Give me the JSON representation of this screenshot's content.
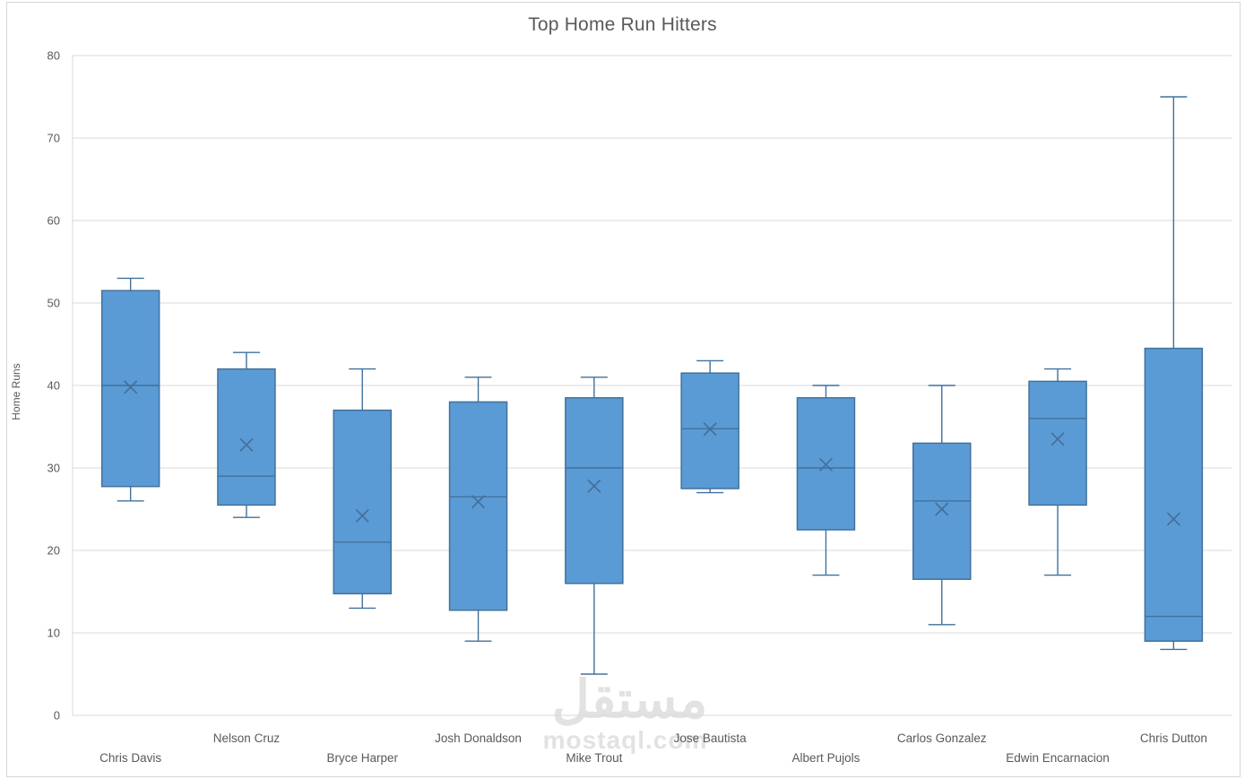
{
  "window": {
    "title": "Top Home Run Hitters"
  },
  "watermark": {
    "arabic": "مستقل",
    "latin": "mostaql.com"
  },
  "chart_data": {
    "type": "boxplot",
    "title": "Top Home Run Hitters",
    "xlabel": "",
    "ylabel": "Home Runs",
    "ylim": [
      0,
      80
    ],
    "yticks": [
      0,
      10,
      20,
      30,
      40,
      50,
      60,
      70,
      80
    ],
    "grid": true,
    "legend": "none",
    "categories": [
      "Chris Davis",
      "Nelson Cruz",
      "Bryce Harper",
      "Josh Donaldson",
      "Mike Trout",
      "Jose Bautista",
      "Albert Pujols",
      "Carlos Gonzalez",
      "Edwin Encarnacion",
      "Chris Dutton"
    ],
    "series": [
      {
        "name": "Chris Davis",
        "min": 26,
        "q1": 27.75,
        "median": 40,
        "q3": 51.5,
        "max": 53,
        "mean": 39.8
      },
      {
        "name": "Nelson Cruz",
        "min": 24,
        "q1": 25.5,
        "median": 29,
        "q3": 42,
        "max": 44,
        "mean": 32.8
      },
      {
        "name": "Bryce Harper",
        "min": 13,
        "q1": 14.75,
        "median": 21,
        "q3": 37,
        "max": 42,
        "mean": 24.2
      },
      {
        "name": "Josh Donaldson",
        "min": 9,
        "q1": 12.75,
        "median": 26.5,
        "q3": 38,
        "max": 41,
        "mean": 25.9
      },
      {
        "name": "Mike Trout",
        "min": 5,
        "q1": 16,
        "median": 30,
        "q3": 38.5,
        "max": 41,
        "mean": 27.8
      },
      {
        "name": "Jose Bautista",
        "min": 27,
        "q1": 27.5,
        "median": 34.75,
        "q3": 41.5,
        "max": 43,
        "mean": 34.7
      },
      {
        "name": "Albert Pujols",
        "min": 17,
        "q1": 22.5,
        "median": 30,
        "q3": 38.5,
        "max": 40,
        "mean": 30.4
      },
      {
        "name": "Carlos Gonzalez",
        "min": 11,
        "q1": 16.5,
        "median": 26,
        "q3": 33,
        "max": 40,
        "mean": 25.0
      },
      {
        "name": "Edwin Encarnacion",
        "min": 17,
        "q1": 25.5,
        "median": 36,
        "q3": 40.5,
        "max": 42,
        "mean": 33.5
      },
      {
        "name": "Chris Dutton",
        "min": 8,
        "q1": 9,
        "median": 12,
        "q3": 44.5,
        "max": 75,
        "mean": 23.8
      }
    ],
    "colors": {
      "box_fill": "#5b9bd5",
      "box_stroke": "#41719c",
      "whisker": "#41719c",
      "median_line": "#41719c",
      "mean_marker": "#456f9b",
      "gridline": "#d9d9d9",
      "axis_line": "#d9d9d9",
      "axis_text": "#595959",
      "title_text": "#595959",
      "watermark": "#e2e2e2"
    }
  }
}
